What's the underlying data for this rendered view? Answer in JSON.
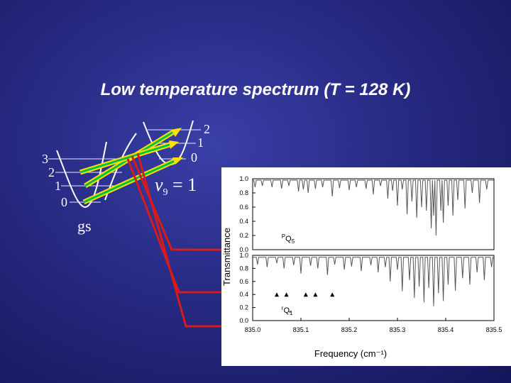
{
  "title": "Low temperature spectrum (T = 128 K)",
  "gs_levels": [
    "3",
    "2",
    "1",
    "0"
  ],
  "upper_levels": [
    "2",
    "1",
    "0"
  ],
  "state_labels": {
    "ground": "gs",
    "nu": "ν",
    "nu_sub": "9",
    "nu_rest": " = 1"
  },
  "colors": {
    "arrow_red": "#d91a1a",
    "arrow_green": "#00c040",
    "arrow_yellow": "#ffe000",
    "background": "#272a82"
  },
  "chart_data": {
    "type": "line",
    "title": "",
    "xlabel": "Frequency (cm⁻¹)",
    "ylabel": "Transmittance",
    "xlim": [
      835.0,
      835.5
    ],
    "x_ticks": [
      "835.0",
      "835.1",
      "835.2",
      "835.3",
      "835.4",
      "835.5"
    ],
    "panels": [
      {
        "name": "upper",
        "ylim": [
          0.0,
          1.0
        ],
        "y_ticks": [
          "1.0",
          "0.8",
          "0.6",
          "0.4",
          "0.2",
          "0.0"
        ],
        "label": "PQ5",
        "label_sup": "P",
        "label_main": "Q",
        "label_sub": "5",
        "baseline": 0.98,
        "lines": [
          [
            835.005,
            0.88
          ],
          [
            835.02,
            0.9
          ],
          [
            835.04,
            0.88
          ],
          [
            835.06,
            0.86
          ],
          [
            835.075,
            0.9
          ],
          [
            835.095,
            0.82
          ],
          [
            835.105,
            0.85
          ],
          [
            835.115,
            0.8
          ],
          [
            835.13,
            0.86
          ],
          [
            835.145,
            0.88
          ],
          [
            835.165,
            0.75
          ],
          [
            835.18,
            0.87
          ],
          [
            835.2,
            0.84
          ],
          [
            835.215,
            0.88
          ],
          [
            835.235,
            0.86
          ],
          [
            835.25,
            0.78
          ],
          [
            835.265,
            0.9
          ],
          [
            835.28,
            0.72
          ],
          [
            835.29,
            0.83
          ],
          [
            835.3,
            0.62
          ],
          [
            835.31,
            0.85
          ],
          [
            835.32,
            0.5
          ],
          [
            835.33,
            0.68
          ],
          [
            835.34,
            0.45
          ],
          [
            835.35,
            0.6
          ],
          [
            835.36,
            0.55
          ],
          [
            835.37,
            0.3
          ],
          [
            835.375,
            0.48
          ],
          [
            835.38,
            0.2
          ],
          [
            835.39,
            0.55
          ],
          [
            835.395,
            0.38
          ],
          [
            835.405,
            0.62
          ],
          [
            835.415,
            0.48
          ],
          [
            835.425,
            0.7
          ],
          [
            835.44,
            0.58
          ],
          [
            835.455,
            0.8
          ],
          [
            835.47,
            0.66
          ],
          [
            835.485,
            0.85
          ]
        ]
      },
      {
        "name": "lower",
        "ylim": [
          0.0,
          1.0
        ],
        "y_ticks": [
          "1.0",
          "0.8",
          "0.6",
          "0.4",
          "0.2",
          "0.0"
        ],
        "label": "rQ1",
        "label_sup": "r",
        "label_main": "Q",
        "label_sub": "1",
        "baseline": 0.97,
        "lines": [
          [
            835.01,
            0.86
          ],
          [
            835.03,
            0.82
          ],
          [
            835.05,
            0.88
          ],
          [
            835.065,
            0.8
          ],
          [
            835.085,
            0.85
          ],
          [
            835.1,
            0.72
          ],
          [
            835.12,
            0.84
          ],
          [
            835.135,
            0.8
          ],
          [
            835.155,
            0.7
          ],
          [
            835.17,
            0.86
          ],
          [
            835.19,
            0.78
          ],
          [
            835.205,
            0.83
          ],
          [
            835.225,
            0.76
          ],
          [
            835.245,
            0.85
          ],
          [
            835.26,
            0.74
          ],
          [
            835.275,
            0.82
          ],
          [
            835.285,
            0.6
          ],
          [
            835.3,
            0.78
          ],
          [
            835.31,
            0.45
          ],
          [
            835.325,
            0.62
          ],
          [
            835.335,
            0.35
          ],
          [
            835.345,
            0.52
          ],
          [
            835.355,
            0.28
          ],
          [
            835.365,
            0.5
          ],
          [
            835.375,
            0.22
          ],
          [
            835.385,
            0.42
          ],
          [
            835.395,
            0.3
          ],
          [
            835.405,
            0.55
          ],
          [
            835.42,
            0.46
          ],
          [
            835.435,
            0.65
          ],
          [
            835.45,
            0.55
          ],
          [
            835.465,
            0.74
          ],
          [
            835.48,
            0.62
          ],
          [
            835.495,
            0.82
          ]
        ],
        "markers": [
          835.05,
          835.07,
          835.11,
          835.13,
          835.165
        ],
        "marker_y": 0.4
      }
    ]
  }
}
